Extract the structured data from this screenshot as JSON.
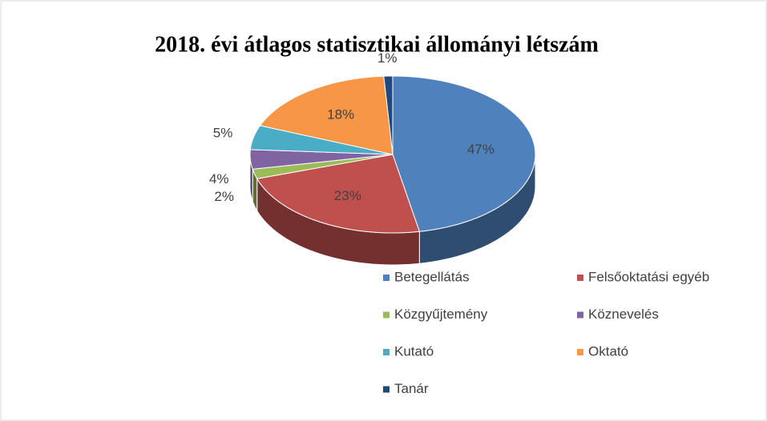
{
  "chart_data": {
    "type": "pie",
    "title": "2018. évi átlagos statisztikai állományi létszám",
    "categories": [
      "Betegellátás",
      "Felsőoktatási egyéb",
      "Közgyűjtemény",
      "Köznevelés",
      "Kutató",
      "Oktató",
      "Tanár"
    ],
    "values": [
      47,
      23,
      2,
      4,
      5,
      18,
      1
    ],
    "value_labels": [
      "47%",
      "23%",
      "2%",
      "4%",
      "5%",
      "18%",
      "1%"
    ],
    "colors": [
      "#4f81bd",
      "#c0504d",
      "#9bbb59",
      "#8064a2",
      "#4bacc6",
      "#f79646",
      "#1f497d"
    ],
    "legend": "bottom"
  }
}
